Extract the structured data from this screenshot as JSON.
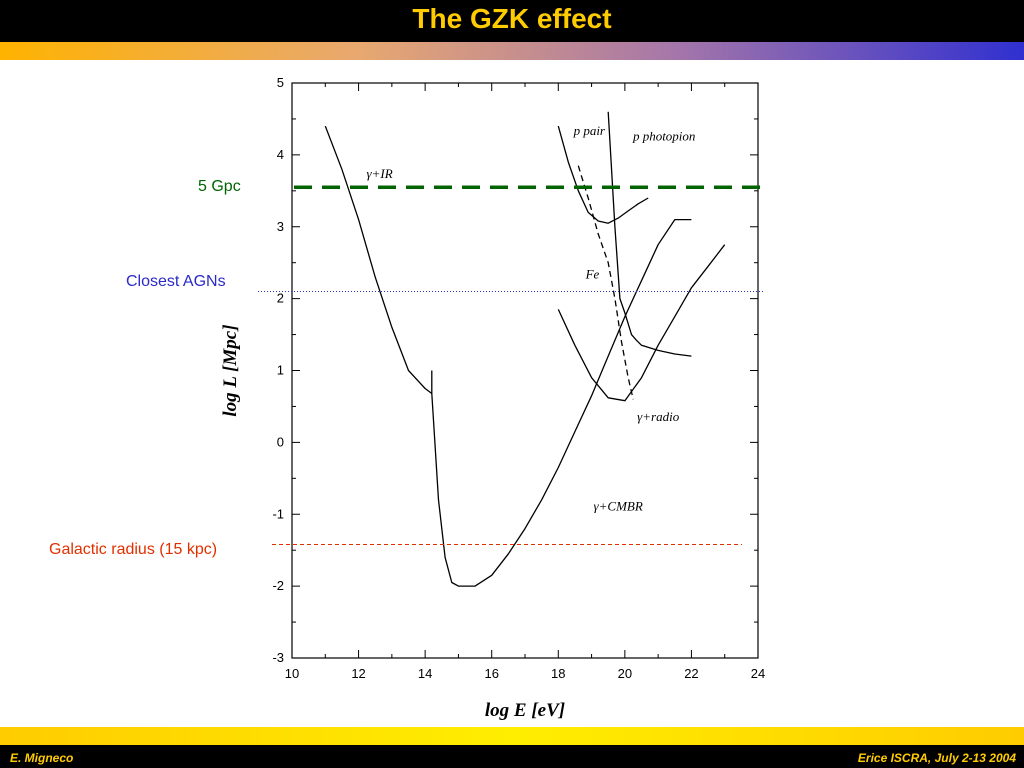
{
  "slide": {
    "title": "The GZK effect",
    "footer_left": "E. Migneco",
    "footer_right": "Erice ISCRA, July 2-13  2004"
  },
  "colors": {
    "title_bar": "#000000",
    "title_text": "#ffcc00",
    "footer_text": "#ffcc00",
    "gpc_line": "#006400",
    "agn_line": "#3030c0",
    "galactic_line": "#e03000",
    "curves": "#000000"
  },
  "chart_data": {
    "type": "line",
    "xlabel": "log E [eV]",
    "ylabel": "log L [Mpc]",
    "xlim": [
      10,
      24
    ],
    "ylim": [
      -3,
      5
    ],
    "xticks": [
      10,
      12,
      14,
      16,
      18,
      20,
      22,
      24
    ],
    "yticks": [
      -3,
      -2,
      -1,
      0,
      1,
      2,
      3,
      4,
      5
    ],
    "grid": false,
    "series": [
      {
        "name": "",
        "style": "solid",
        "x": [
          11.0,
          11.5,
          12.0,
          12.5,
          13.0,
          13.5,
          14.0,
          14.2
        ],
        "y": [
          4.4,
          3.8,
          3.1,
          2.3,
          1.6,
          1.0,
          0.75,
          0.68
        ]
      },
      {
        "name": "",
        "style": "solid",
        "x": [
          14.2,
          14.2
        ],
        "y": [
          0.68,
          1.0
        ]
      },
      {
        "name": "",
        "style": "solid",
        "x": [
          14.2,
          14.4,
          14.6,
          14.8,
          15.0,
          15.5,
          16.0,
          16.5,
          17.0,
          17.5,
          18.0,
          18.5,
          19.0,
          19.5,
          20.0,
          20.5,
          21.0,
          21.5,
          22.0
        ],
        "y": [
          0.68,
          -0.8,
          -1.6,
          -1.95,
          -2.0,
          -2.0,
          -1.85,
          -1.55,
          -1.2,
          -0.8,
          -0.35,
          0.15,
          0.65,
          1.2,
          1.75,
          2.25,
          2.75,
          3.1,
          3.1
        ]
      },
      {
        "name": "",
        "style": "solid",
        "x": [
          18.0,
          18.5,
          19.0,
          19.5,
          20.0,
          20.5,
          21.0,
          21.5,
          22.0,
          22.5,
          23.0
        ],
        "y": [
          1.85,
          1.35,
          0.9,
          0.62,
          0.58,
          0.9,
          1.35,
          1.75,
          2.15,
          2.45,
          2.75
        ]
      },
      {
        "name": "",
        "style": "solid",
        "x": [
          18.0,
          18.3,
          18.6,
          18.9,
          19.2,
          19.5,
          19.8,
          20.1,
          20.4,
          20.7
        ],
        "y": [
          4.4,
          3.9,
          3.5,
          3.2,
          3.08,
          3.05,
          3.12,
          3.22,
          3.32,
          3.4
        ]
      },
      {
        "name": "",
        "style": "solid",
        "x": [
          19.5,
          19.7,
          19.85,
          20.0,
          20.1,
          20.2,
          20.35,
          20.5,
          21.0,
          21.5,
          22.0
        ],
        "y": [
          4.6,
          3.0,
          2.0,
          1.8,
          1.65,
          1.5,
          1.42,
          1.35,
          1.28,
          1.23,
          1.2
        ]
      },
      {
        "name": "",
        "style": "dashed",
        "x": [
          18.6,
          18.9,
          19.2,
          19.5,
          19.7,
          19.9,
          20.1,
          20.25
        ],
        "y": [
          3.85,
          3.4,
          2.9,
          2.5,
          2.0,
          1.4,
          0.9,
          0.6
        ]
      }
    ],
    "curve_labels": [
      {
        "text": "γ+IR",
        "x": 12.6,
        "y": 3.68
      },
      {
        "text": "p pair",
        "x": 19.0,
        "y": 4.28
      },
      {
        "text": "p photopion",
        "x": 22.0,
        "y": 4.2
      },
      {
        "text": "Fe",
        "x": 19.0,
        "y": 2.28
      },
      {
        "text": "γ+radio",
        "x": 21.0,
        "y": 0.3
      },
      {
        "text": "γ+CMBR",
        "x": 19.6,
        "y": -0.95
      }
    ],
    "reference_lines": [
      {
        "label": "5 Gpc",
        "y": 3.55,
        "color": "#006400",
        "style": "bold-dashed"
      },
      {
        "label": "Closest AGNs",
        "y": 2.1,
        "color": "#3030c0",
        "style": "dotted"
      },
      {
        "label": "Galactic radius (15 kpc)",
        "y": -1.42,
        "color": "#e03000",
        "style": "dashed"
      }
    ]
  }
}
